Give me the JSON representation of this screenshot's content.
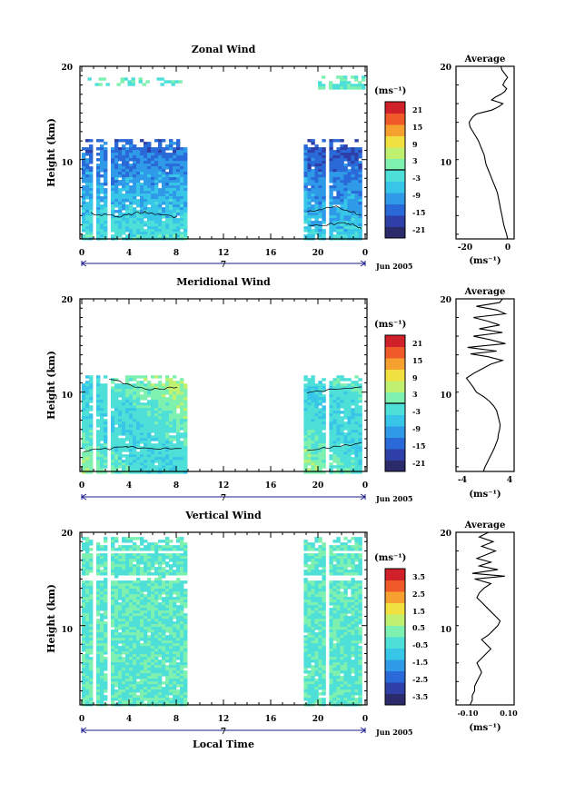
{
  "figure": {
    "date_label": "Jun 2005",
    "xlabel_bottom": "Local Time",
    "day_label": "7",
    "x_tick_labels": [
      "0",
      "4",
      "8",
      "12",
      "16",
      "20",
      "0"
    ]
  },
  "colors": {
    "scale": [
      "#2b2a6b",
      "#2f3fa8",
      "#2a6ad8",
      "#2f9ae8",
      "#38c6e8",
      "#4ee0d8",
      "#7ef0b0",
      "#c0f070",
      "#f0e040",
      "#f6a030",
      "#f05a28",
      "#d0202a"
    ],
    "contour": "#000000",
    "axis_marker": "#1a1a8c"
  },
  "chart_data": [
    {
      "type": "heatmap",
      "title": "Zonal Wind",
      "ylabel": "Height (km)",
      "y_tick_labels": [
        "20",
        "10"
      ],
      "ylim": [
        1.5,
        20
      ],
      "xlim": [
        0,
        24
      ],
      "x_unit": "local time (h)",
      "data_coverage": [
        {
          "x": [
            0,
            8.7
          ],
          "y": [
            1.5,
            12.2
          ]
        },
        {
          "x": [
            18.8,
            23.7
          ],
          "y": [
            1.5,
            12.2
          ]
        },
        {
          "x": [
            0.5,
            8.5
          ],
          "y": [
            18.0,
            18.8
          ]
        },
        {
          "x": [
            20.0,
            23.8
          ],
          "y": [
            17.8,
            19.0
          ]
        }
      ],
      "pattern": "zonal",
      "colorbar": {
        "unit_label": "(ms⁻¹)",
        "tick_labels": [
          "21",
          "15",
          "9",
          "3",
          "-3",
          "-9",
          "-15",
          "-21"
        ],
        "range": [
          -24,
          24
        ],
        "zero_line": true
      },
      "profile": {
        "title": "Average",
        "unit_label": "(ms⁻¹)",
        "x_tick_labels": [
          "-20",
          "0"
        ],
        "y_tick_labels": [
          "20",
          "10"
        ],
        "xlim": [
          -27,
          4
        ],
        "x": [
          0.5,
          0.0,
          -0.8,
          -1.5,
          -2.0,
          -2.5,
          -3.0,
          -3.5,
          -4.0,
          -4.5,
          -5.0,
          -6.0,
          -7.0,
          -8.0,
          -9.0,
          -10.0,
          -11.0,
          -11.5,
          -12.0,
          -13.0,
          -14.0,
          -15.0,
          -16.5,
          -18.0,
          -19.5,
          -20.0,
          -19.0,
          -18.0,
          -16.0,
          -12.0,
          -8.0,
          -6.0,
          -4.0,
          -2.0,
          -5.0,
          -8.0,
          -6.0,
          -3.0,
          -1.0,
          0.0,
          -2.0,
          -1.0,
          0.5,
          -1.0,
          -2.5,
          -3.0
        ],
        "y": [
          1.5,
          2.0,
          2.5,
          3.0,
          3.5,
          4.0,
          4.5,
          5.0,
          5.5,
          6.0,
          6.5,
          7.0,
          7.5,
          8.0,
          8.5,
          9.0,
          9.5,
          10.0,
          10.5,
          11.0,
          11.5,
          12.0,
          12.5,
          13.0,
          13.5,
          14.0,
          14.3,
          14.6,
          14.9,
          15.1,
          15.3,
          15.5,
          15.7,
          16.0,
          16.2,
          16.4,
          16.7,
          17.0,
          17.3,
          17.6,
          18.0,
          18.4,
          18.8,
          19.2,
          19.6,
          20.0
        ]
      }
    },
    {
      "type": "heatmap",
      "title": "Meridional Wind",
      "ylabel": "Height (km)",
      "y_tick_labels": [
        "20",
        "10"
      ],
      "ylim": [
        1.5,
        20
      ],
      "xlim": [
        0,
        24
      ],
      "x_unit": "local time (h)",
      "data_coverage": [
        {
          "x": [
            0,
            8.7
          ],
          "y": [
            1.5,
            11.8
          ]
        },
        {
          "x": [
            18.8,
            23.7
          ],
          "y": [
            1.5,
            11.8
          ]
        }
      ],
      "pattern": "meridional",
      "colorbar": {
        "unit_label": "(ms⁻¹)",
        "tick_labels": [
          "21",
          "15",
          "9",
          "3",
          "-3",
          "-9",
          "-15",
          "-21"
        ],
        "range": [
          -24,
          24
        ],
        "zero_line": true
      },
      "profile": {
        "title": "Average",
        "unit_label": "(ms⁻¹)",
        "x_tick_labels": [
          "-4",
          "4"
        ],
        "y_tick_labels": [
          "20",
          "10"
        ],
        "xlim": [
          -5,
          5
        ],
        "x": [
          -0.3,
          0.0,
          0.4,
          0.8,
          1.2,
          1.6,
          1.9,
          2.2,
          2.3,
          2.5,
          2.6,
          2.4,
          2.2,
          2.0,
          1.5,
          0.8,
          -0.2,
          -1.5,
          -2.0,
          -2.6,
          -3.2,
          -2.0,
          -0.5,
          1.0,
          3.0,
          0.5,
          -2.5,
          2.0,
          -3.0,
          3.5,
          1.0,
          -2.0,
          3.0,
          -1.0,
          2.5,
          0.5,
          -2.0,
          3.5,
          2.0,
          -1.5,
          2.5,
          3.0
        ],
        "y": [
          1.5,
          2.0,
          2.5,
          3.0,
          3.5,
          4.0,
          4.5,
          5.0,
          5.5,
          6.0,
          6.5,
          7.0,
          7.5,
          8.0,
          8.5,
          9.0,
          9.5,
          10.0,
          10.5,
          11.0,
          11.5,
          12.0,
          12.5,
          13.0,
          13.4,
          13.8,
          14.1,
          14.4,
          14.8,
          15.2,
          15.6,
          16.0,
          16.4,
          16.8,
          17.2,
          17.6,
          18.0,
          18.4,
          18.8,
          19.2,
          19.6,
          20.0
        ]
      }
    },
    {
      "type": "heatmap",
      "title": "Vertical Wind",
      "ylabel": "Height (km)",
      "y_tick_labels": [
        "20",
        "10"
      ],
      "ylim": [
        1.5,
        20
      ],
      "xlim": [
        0,
        24
      ],
      "x_unit": "local time (h)",
      "data_coverage": [
        {
          "x": [
            0,
            8.7
          ],
          "y": [
            1.5,
            19.5
          ]
        },
        {
          "x": [
            18.8,
            23.7
          ],
          "y": [
            1.5,
            19.5
          ]
        }
      ],
      "pattern": "vertical",
      "colorbar": {
        "unit_label": "(ms⁻¹)",
        "tick_labels": [
          "3.5",
          "2.5",
          "1.5",
          "0.5",
          "-0.5",
          "-1.5",
          "-2.5",
          "-3.5"
        ],
        "range": [
          -4,
          4
        ],
        "zero_line": false
      },
      "profile": {
        "title": "Average",
        "unit_label": "(ms⁻¹)",
        "x_tick_labels": [
          "-0.10",
          "0.10"
        ],
        "y_tick_labels": [
          "20",
          "10"
        ],
        "xlim": [
          -0.13,
          0.12
        ],
        "x": [
          -0.07,
          -0.06,
          -0.06,
          -0.05,
          -0.05,
          -0.04,
          -0.03,
          -0.02,
          -0.03,
          -0.04,
          -0.02,
          0.0,
          0.02,
          0.0,
          -0.02,
          0.01,
          0.03,
          0.05,
          0.06,
          0.04,
          0.02,
          0.0,
          -0.02,
          -0.04,
          -0.03,
          -0.01,
          0.02,
          -0.05,
          0.08,
          -0.06,
          0.05,
          -0.03,
          0.02,
          -0.04,
          0.0,
          0.04,
          -0.02,
          0.03,
          -0.03,
          0.01
        ],
        "y": [
          1.5,
          2.0,
          2.5,
          3.0,
          3.5,
          4.0,
          4.5,
          5.0,
          5.5,
          6.0,
          6.5,
          7.0,
          7.5,
          8.0,
          8.5,
          9.0,
          9.5,
          10.0,
          10.5,
          11.0,
          11.5,
          12.0,
          12.5,
          13.0,
          13.5,
          14.0,
          14.5,
          15.0,
          15.3,
          15.6,
          16.0,
          16.4,
          16.8,
          17.2,
          17.6,
          18.0,
          18.5,
          19.0,
          19.5,
          20.0
        ]
      }
    }
  ]
}
